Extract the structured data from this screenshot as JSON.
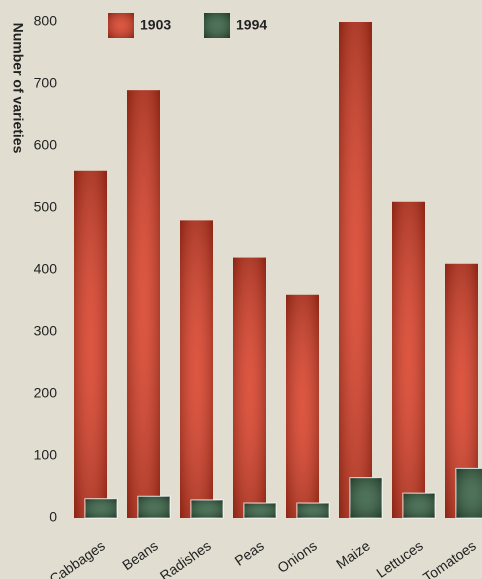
{
  "chart_data": {
    "type": "bar",
    "y_label": "Number of varieties",
    "categories": [
      "Cabbages",
      "Beans",
      "Radishes",
      "Peas",
      "Onions",
      "Maize",
      "Lettuces",
      "Tomatoes"
    ],
    "series": [
      {
        "name": "1903",
        "color": "#d8381f",
        "values": [
          560,
          690,
          480,
          420,
          360,
          800,
          510,
          410
        ]
      },
      {
        "name": "1994",
        "color": "#2f5a3c",
        "values": [
          31,
          35,
          29,
          24,
          24,
          65,
          40,
          80
        ]
      }
    ],
    "ylim": [
      0,
      800
    ],
    "yticks": [
      0,
      100,
      200,
      300,
      400,
      500,
      600,
      700,
      800
    ]
  }
}
